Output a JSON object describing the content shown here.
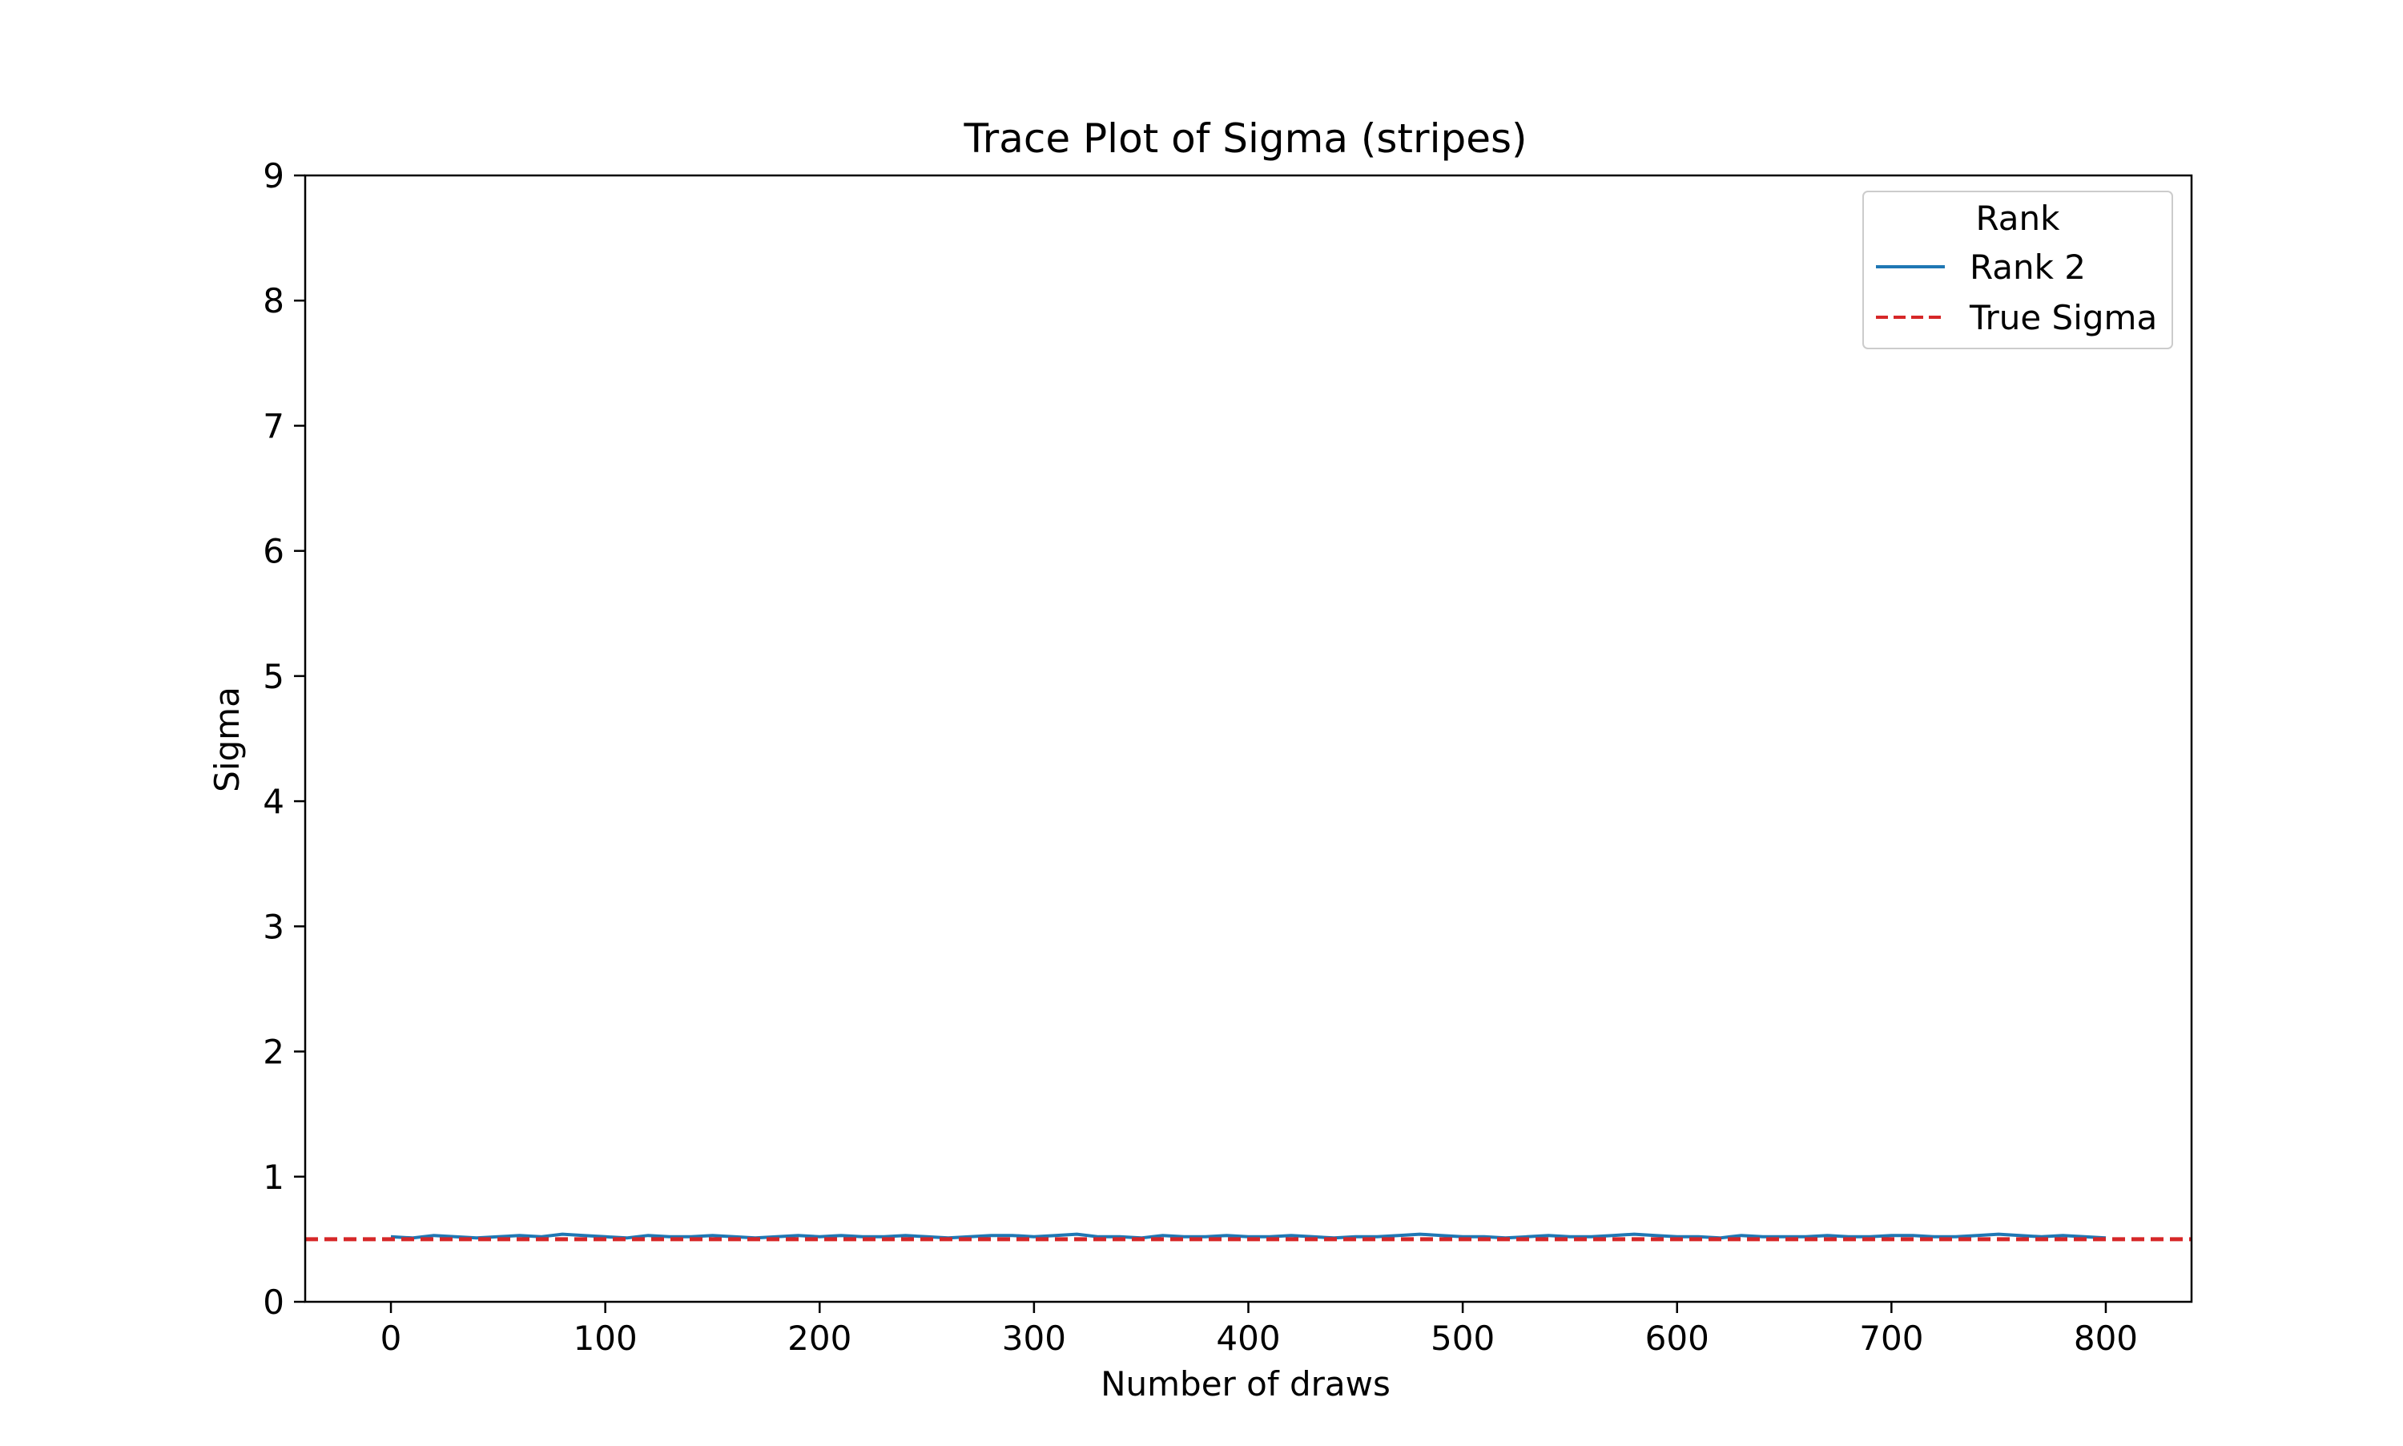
{
  "chart_data": {
    "type": "line",
    "title": "Trace Plot of Sigma (stripes)",
    "xlabel": "Number of draws",
    "ylabel": "Sigma",
    "xlim": [
      -40,
      840
    ],
    "ylim": [
      0,
      9
    ],
    "x_ticks": [
      0,
      100,
      200,
      300,
      400,
      500,
      600,
      700,
      800
    ],
    "y_ticks": [
      0,
      1,
      2,
      3,
      4,
      5,
      6,
      7,
      8,
      9
    ],
    "grid": false,
    "legend": {
      "title": "Rank",
      "placement": "top-right",
      "entries": [
        {
          "label": "Rank 2",
          "color": "#1f77b4",
          "style": "solid"
        },
        {
          "label": "True Sigma",
          "color": "#d62728",
          "style": "dashed"
        }
      ]
    },
    "series": [
      {
        "name": "Rank 2",
        "color": "#1f77b4",
        "x_start": 0,
        "x_step": 10,
        "values": [
          0.52,
          0.51,
          0.53,
          0.52,
          0.51,
          0.52,
          0.53,
          0.52,
          0.54,
          0.53,
          0.52,
          0.51,
          0.53,
          0.52,
          0.52,
          0.53,
          0.52,
          0.51,
          0.52,
          0.53,
          0.52,
          0.53,
          0.52,
          0.52,
          0.53,
          0.52,
          0.51,
          0.52,
          0.53,
          0.53,
          0.52,
          0.53,
          0.54,
          0.52,
          0.52,
          0.51,
          0.53,
          0.52,
          0.52,
          0.53,
          0.52,
          0.52,
          0.53,
          0.52,
          0.51,
          0.52,
          0.52,
          0.53,
          0.54,
          0.53,
          0.52,
          0.52,
          0.51,
          0.52,
          0.53,
          0.52,
          0.52,
          0.53,
          0.54,
          0.53,
          0.52,
          0.52,
          0.51,
          0.53,
          0.52,
          0.52,
          0.52,
          0.53,
          0.52,
          0.52,
          0.53,
          0.53,
          0.52,
          0.52,
          0.53,
          0.54,
          0.53,
          0.52,
          0.53,
          0.52,
          0.51
        ]
      }
    ],
    "reference_lines": [
      {
        "name": "True Sigma",
        "y": 0.5,
        "color": "#d62728",
        "style": "dashed"
      }
    ]
  }
}
